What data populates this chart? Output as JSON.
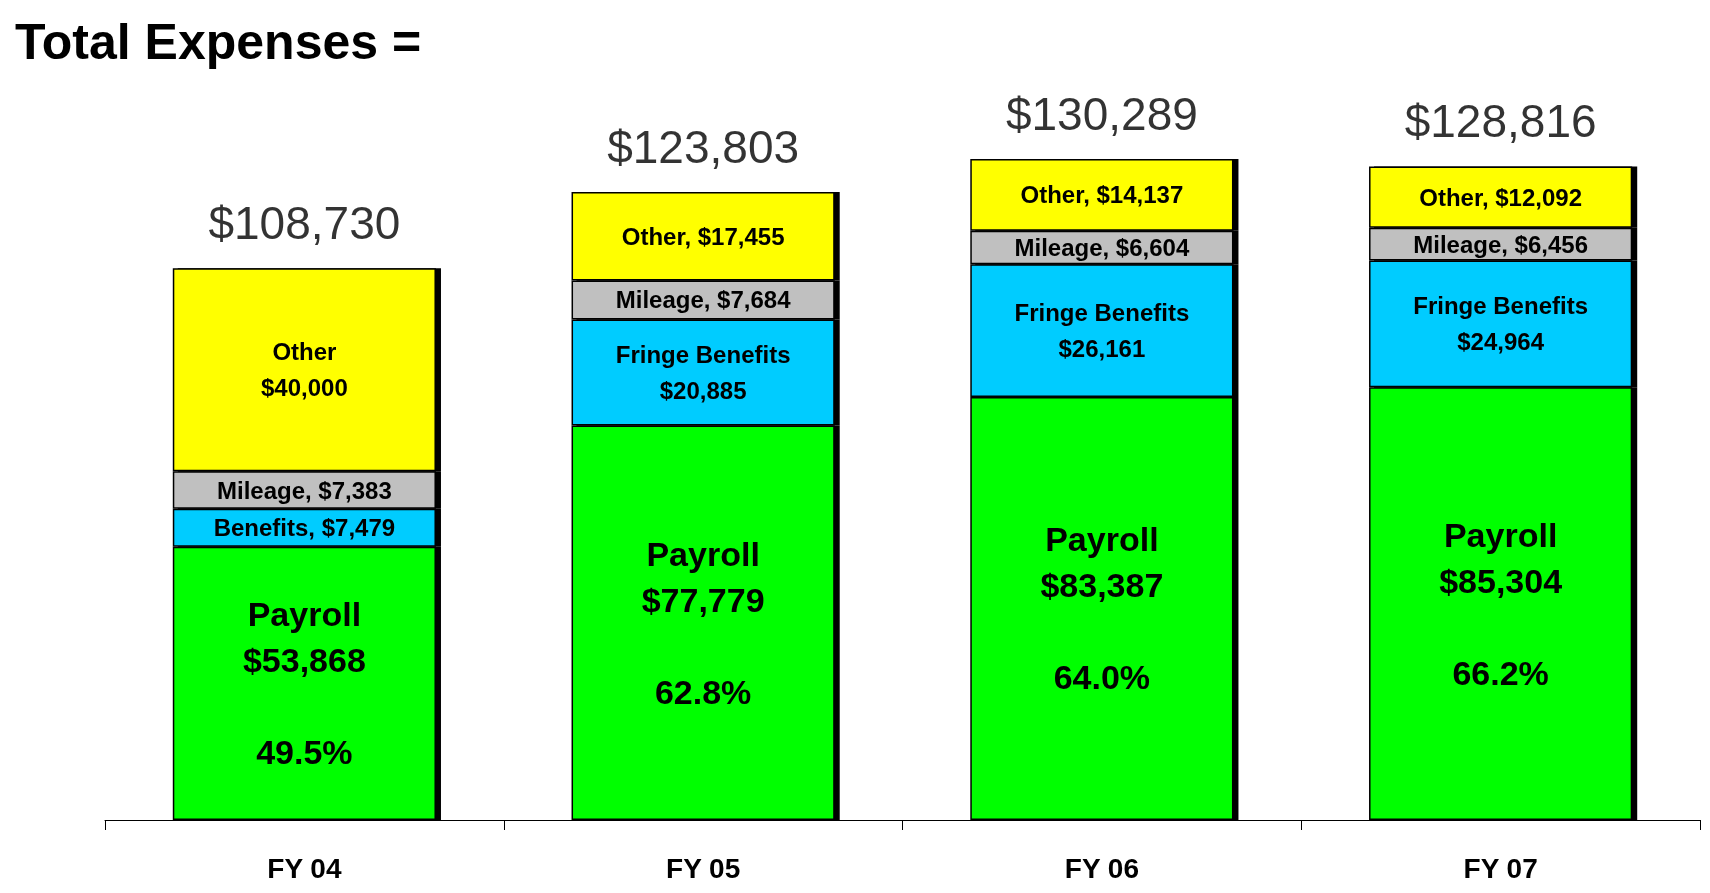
{
  "chart_data": {
    "type": "bar",
    "title": "Total Expenses =",
    "stacked": true,
    "categories": [
      "FY 04",
      "FY 05",
      "FY 06",
      "FY 07"
    ],
    "series": [
      {
        "color": "#00ff00",
        "values": [
          53868,
          77779,
          83387,
          85304
        ],
        "value_labels": [
          "Payroll\n$53,868\n\n49.5%",
          "Payroll\n$77,779\n\n62.8%",
          "Payroll\n$83,387\n\n64.0%",
          "Payroll\n$85,304\n\n66.2%"
        ]
      },
      {
        "color": "#00ccff",
        "values": [
          7479,
          20885,
          26161,
          24964
        ],
        "value_labels": [
          "Benefits, $7,479",
          "Fringe Benefits\n$20,885",
          "Fringe Benefits\n$26,161",
          "Fringe Benefits\n$24,964"
        ]
      },
      {
        "color": "#c0c0c0",
        "values": [
          7383,
          7684,
          6604,
          6456
        ],
        "value_labels": [
          "Mileage, $7,383",
          "Mileage, $7,684",
          "Mileage, $6,604",
          "Mileage, $6,456"
        ]
      },
      {
        "color": "#ffff00",
        "values": [
          40000,
          17455,
          14137,
          12092
        ],
        "value_labels": [
          "Other\n$40,000",
          "Other, $17,455",
          "Other, $14,137",
          "Other, $12,092"
        ]
      }
    ],
    "totals": [
      "$108,730",
      "$123,803",
      "$130,289",
      "$128,816"
    ]
  }
}
